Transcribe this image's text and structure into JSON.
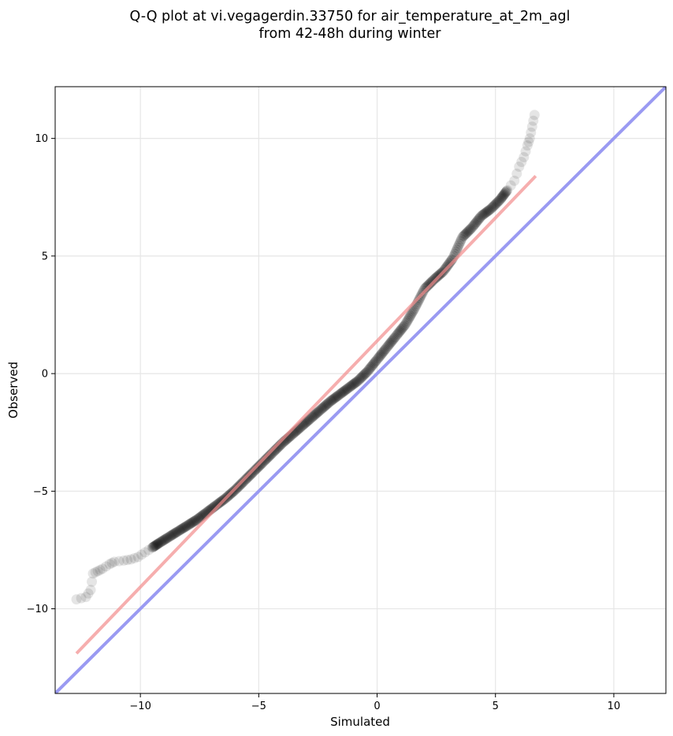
{
  "chart_data": {
    "type": "scatter",
    "title_lines": [
      "Q-Q plot at vi.vegagerdin.33750 for air_temperature_at_2m_agl",
      "from 42-48h during winter"
    ],
    "xlabel": "Simulated",
    "ylabel": "Observed",
    "xlim": [
      -13.6,
      12.2
    ],
    "ylim": [
      -13.6,
      12.2
    ],
    "xticks": [
      -10,
      -5,
      0,
      5,
      10
    ],
    "yticks": [
      -10,
      -5,
      0,
      5,
      10
    ],
    "tick_labels": [
      "−10",
      "−5",
      "0",
      "5",
      "10"
    ],
    "grid": true,
    "marker_color": "#000000",
    "marker_opacity": 0.1,
    "fit_line": {
      "color": "#f28b8b",
      "x": [
        -12.7,
        6.7
      ],
      "y": [
        -11.9,
        8.4
      ]
    },
    "identity_line": {
      "color": "#9a9af2",
      "x": [
        -13.6,
        12.2
      ],
      "y": [
        -13.6,
        12.2
      ]
    },
    "qq_points": [
      [
        -12.7,
        -9.6
      ],
      [
        -12.3,
        -9.5
      ],
      [
        -12.1,
        -9.2
      ],
      [
        -12.0,
        -8.5
      ],
      [
        -11.8,
        -8.4
      ],
      [
        -11.6,
        -8.3
      ],
      [
        -11.3,
        -8.1
      ],
      [
        -11.1,
        -8.0
      ],
      [
        -10.7,
        -7.95
      ],
      [
        -10.4,
        -7.9
      ],
      [
        -10.1,
        -7.8
      ],
      [
        -9.8,
        -7.6
      ],
      [
        -9.5,
        -7.4
      ],
      [
        -9.2,
        -7.2
      ],
      [
        -8.8,
        -6.95
      ],
      [
        -8.4,
        -6.7
      ],
      [
        -8.0,
        -6.45
      ],
      [
        -7.6,
        -6.2
      ],
      [
        -7.2,
        -5.9
      ],
      [
        -6.8,
        -5.6
      ],
      [
        -6.4,
        -5.3
      ],
      [
        -6.0,
        -4.95
      ],
      [
        -5.6,
        -4.55
      ],
      [
        -5.2,
        -4.15
      ],
      [
        -4.8,
        -3.75
      ],
      [
        -4.4,
        -3.35
      ],
      [
        -4.0,
        -2.95
      ],
      [
        -3.6,
        -2.6
      ],
      [
        -3.2,
        -2.25
      ],
      [
        -2.8,
        -1.9
      ],
      [
        -2.4,
        -1.55
      ],
      [
        -2.0,
        -1.2
      ],
      [
        -1.6,
        -0.9
      ],
      [
        -1.2,
        -0.6
      ],
      [
        -0.8,
        -0.3
      ],
      [
        -0.4,
        0.1
      ],
      [
        0.0,
        0.6
      ],
      [
        0.4,
        1.1
      ],
      [
        0.8,
        1.6
      ],
      [
        1.2,
        2.1
      ],
      [
        1.6,
        2.8
      ],
      [
        2.0,
        3.6
      ],
      [
        2.4,
        4.0
      ],
      [
        2.8,
        4.35
      ],
      [
        3.2,
        4.9
      ],
      [
        3.6,
        5.8
      ],
      [
        4.0,
        6.2
      ],
      [
        4.4,
        6.7
      ],
      [
        4.8,
        7.0
      ],
      [
        5.2,
        7.4
      ],
      [
        5.5,
        7.8
      ],
      [
        5.8,
        8.2
      ],
      [
        6.0,
        8.8
      ],
      [
        6.2,
        9.2
      ],
      [
        6.35,
        9.7
      ],
      [
        6.45,
        10.0
      ],
      [
        6.55,
        10.5
      ],
      [
        6.65,
        11.0
      ]
    ]
  }
}
